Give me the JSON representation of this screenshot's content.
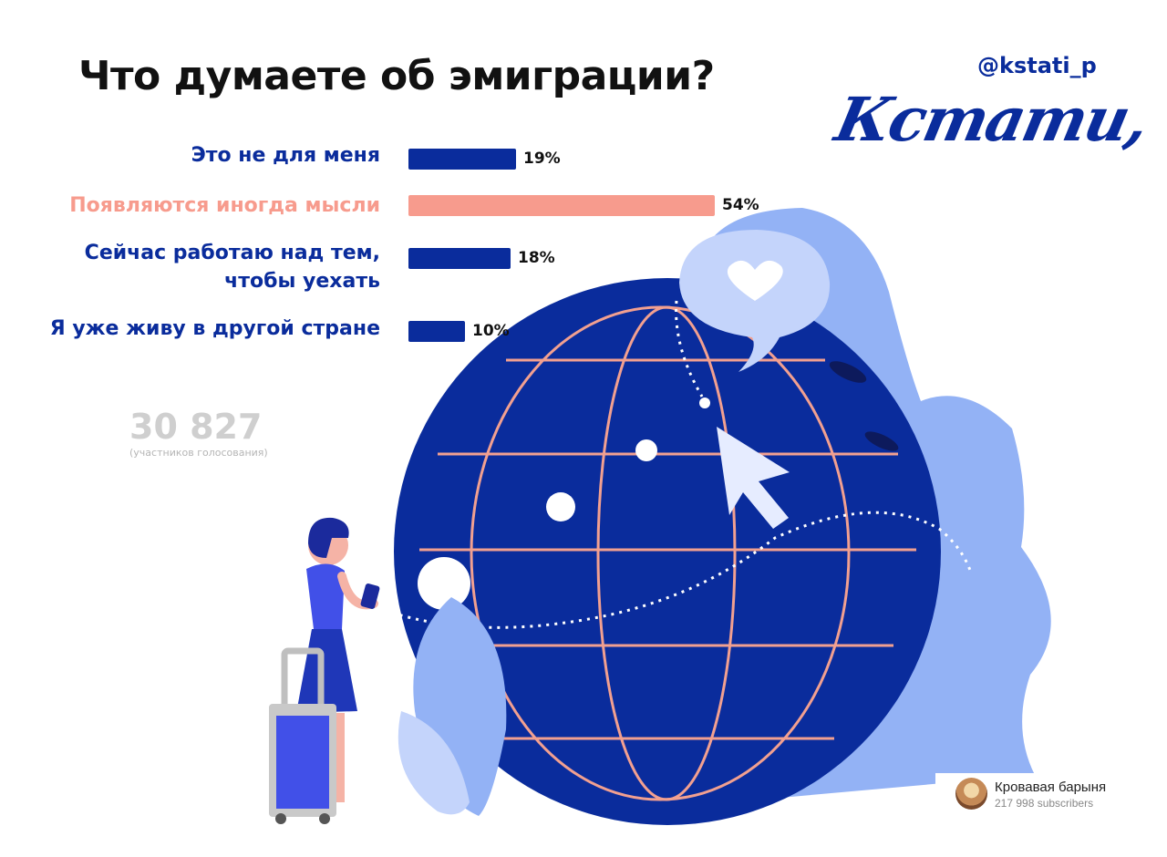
{
  "title": "Что думаете об эмиграции?",
  "handle": "@kstati_p",
  "logo_text": "Кстати,",
  "colors": {
    "accent_blue": "#0a2c9c",
    "accent_salmon": "#f79b8d",
    "light_blue": "#93b2f5"
  },
  "chart_data": {
    "type": "bar",
    "orientation": "horizontal",
    "title": "Что думаете об эмиграции?",
    "categories": [
      "Это не для меня",
      "Появляются иногда мысли",
      "Сейчас работаю над тем,\nчтобы уехать",
      "Я уже живу в другой стране"
    ],
    "values": [
      19,
      54,
      18,
      10
    ],
    "value_labels": [
      "19%",
      "54%",
      "18%",
      "10%"
    ],
    "highlight_index": 1,
    "unit": "%",
    "xlim": [
      0,
      100
    ],
    "grid": false
  },
  "total": {
    "value": "30 827",
    "label": "(участников голосования)"
  },
  "channel": {
    "name": "Кровавая барыня",
    "subscribers": "217 998 subscribers"
  }
}
